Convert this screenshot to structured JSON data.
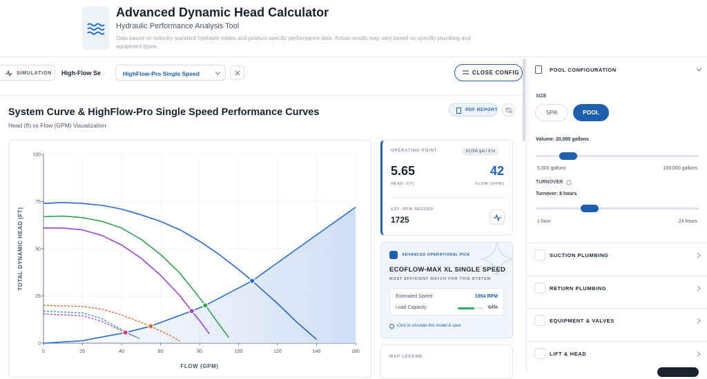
{
  "header": {
    "title": "Advanced Dynamic Head Calculator",
    "subtitle": "Hydraulic Performance Analysis Tool",
    "note": "Data based on industry-standard hydraulic tables and product-specific performance data. Actual results may vary based on specific plumbing and equipment types."
  },
  "toolbar": {
    "mode": "SIMULATION",
    "brand": "High-Flow Se",
    "model": "HighFlow-Pro Single Speed",
    "close": "CLOSE CONFIG"
  },
  "chart_panel": {
    "title": "System Curve & HighFlow-Pro Single Speed Performance Curves",
    "subtitle": "Head (ft) vs Flow (GPM) Visualization",
    "report": "PDF REPORT"
  },
  "chart_data": {
    "type": "line",
    "x_label": "FLOW (GPM)",
    "y_label": "TOTAL DYNAMIC HEAD (FT)",
    "xlim": [
      0,
      160
    ],
    "xticks": [
      0,
      20,
      40,
      60,
      80,
      100,
      120,
      140,
      160
    ],
    "ylim": [
      0,
      100
    ],
    "yticks": [
      0,
      25,
      50,
      75,
      100
    ],
    "grid": true,
    "series": [
      {
        "color": "#1f6fd1",
        "fill": true,
        "dash": false,
        "x": [
          0,
          20,
          42,
          55,
          76,
          83,
          107,
          130,
          160
        ],
        "values": [
          0,
          1.3,
          5.6,
          9,
          17,
          20,
          33,
          50,
          72
        ]
      },
      {
        "color": "#2266d8",
        "fill": false,
        "dash": false,
        "x": [
          0,
          10,
          20,
          30,
          40,
          50,
          60,
          70,
          80,
          90,
          100,
          107,
          120,
          130,
          140
        ],
        "values": [
          74,
          74.5,
          74,
          73,
          71,
          68,
          64.5,
          60,
          54,
          47,
          39,
          33,
          21,
          11,
          2
        ]
      },
      {
        "color": "#2ea34a",
        "fill": false,
        "dash": false,
        "x": [
          0,
          10,
          20,
          30,
          40,
          50,
          60,
          70,
          80,
          83,
          90,
          95
        ],
        "values": [
          67,
          67.3,
          66.5,
          64.5,
          61,
          55,
          47,
          37,
          24,
          20,
          10,
          3
        ]
      },
      {
        "color": "#9b3fd9",
        "fill": false,
        "dash": false,
        "x": [
          0,
          10,
          20,
          30,
          40,
          50,
          60,
          70,
          76,
          80,
          85
        ],
        "values": [
          61,
          61,
          60,
          57,
          52,
          45,
          36,
          25,
          17,
          12,
          5
        ]
      },
      {
        "color": "#e0652a",
        "fill": false,
        "dash": true,
        "x": [
          0,
          20,
          30,
          40,
          55,
          65,
          70
        ],
        "values": [
          20,
          19.5,
          18,
          15,
          9,
          4,
          1
        ]
      },
      {
        "color": "#3a9aa8",
        "fill": false,
        "dash": true,
        "x": [
          0,
          20,
          30,
          42,
          50
        ],
        "values": [
          17,
          16,
          13,
          6,
          2
        ]
      },
      {
        "color": "#b04ad8",
        "fill": false,
        "dash": true,
        "x": [
          0,
          20,
          30,
          42,
          48
        ],
        "values": [
          15.5,
          14.5,
          11.5,
          5.6,
          3
        ]
      }
    ],
    "points": [
      {
        "x": 42,
        "y": 5.6,
        "color": "#e0336f"
      },
      {
        "x": 55,
        "y": 9,
        "color": "#e0652a"
      },
      {
        "x": 76,
        "y": 17,
        "color": "#9b3fd9"
      },
      {
        "x": 83,
        "y": 20,
        "color": "#2ea34a"
      },
      {
        "x": 107,
        "y": 33,
        "color": "#2563eb"
      }
    ]
  },
  "operating_point": {
    "label": "OPERATING POINT",
    "rate": "20,000 gal / 8 hr",
    "head": 5.65,
    "head_label": "HEAD (FT)",
    "flow": 42,
    "flow_label": "FLOW (GPM)",
    "rpm_label": "EST. RPM NEEDED",
    "rpm": 1725
  },
  "pick": {
    "badge": "ADVANCED OPERATIONAL PICK",
    "model": "ECOFLOW-MAX XL SINGLE SPEED",
    "tagline": "MOST EFFICIENT MATCH FOR THIS SYSTEM",
    "speed_label": "Estimated Speed",
    "speed": "1854 RPM",
    "load_label": "Load Capacity",
    "load": {
      "value": 64,
      "label": "64%"
    },
    "action": "Click to simulate this model & save"
  },
  "legend": {
    "title": "MAP LEGEND"
  },
  "config": {
    "title": "POOL CONFIGURATION",
    "size_label": "SIZE",
    "spa": "SPA",
    "pool": "POOL",
    "volume": "Volume: 20,000 gallons",
    "volume_min": "5,000 gallons",
    "volume_max": "100,000 gallons",
    "turnover_label": "TURNOVER",
    "turnover": "Turnover: 8 hours",
    "turnover_min": "1 hour",
    "turnover_max": "24 hours",
    "sections": [
      "SUCTION PLUMBING",
      "RETURN PLUMBING",
      "EQUIPMENT & VALVES",
      "LIFT & HEAD"
    ]
  }
}
